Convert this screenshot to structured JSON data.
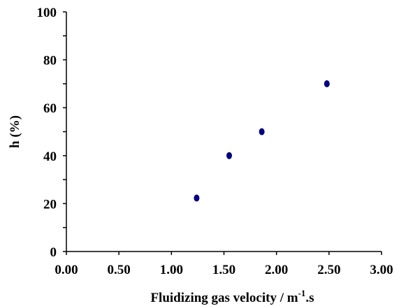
{
  "chart_data": {
    "type": "scatter",
    "xlabel": "Fluidizing gas velocity / m",
    "xlabel_superscript": "-1",
    "xlabel_suffix": ".s",
    "ylabel": "h (%)",
    "xlim": [
      0,
      3
    ],
    "ylim": [
      0,
      100
    ],
    "x_ticks": [
      "0.00",
      "0.50",
      "1.00",
      "1.50",
      "2.00",
      "2.50",
      "3.00"
    ],
    "y_ticks": [
      "0",
      "20",
      "40",
      "60",
      "80",
      "100"
    ],
    "x_tick_values": [
      0,
      0.5,
      1,
      1.5,
      2,
      2.5,
      3
    ],
    "y_tick_values": [
      0,
      20,
      40,
      60,
      80,
      100
    ],
    "grid": false,
    "legend": "none",
    "series": [
      {
        "color": "#000080",
        "points": [
          {
            "x": 1.24,
            "y": 22.3
          },
          {
            "x": 1.55,
            "y": 40
          },
          {
            "x": 1.86,
            "y": 50
          },
          {
            "x": 2.48,
            "y": 70
          }
        ]
      }
    ]
  }
}
